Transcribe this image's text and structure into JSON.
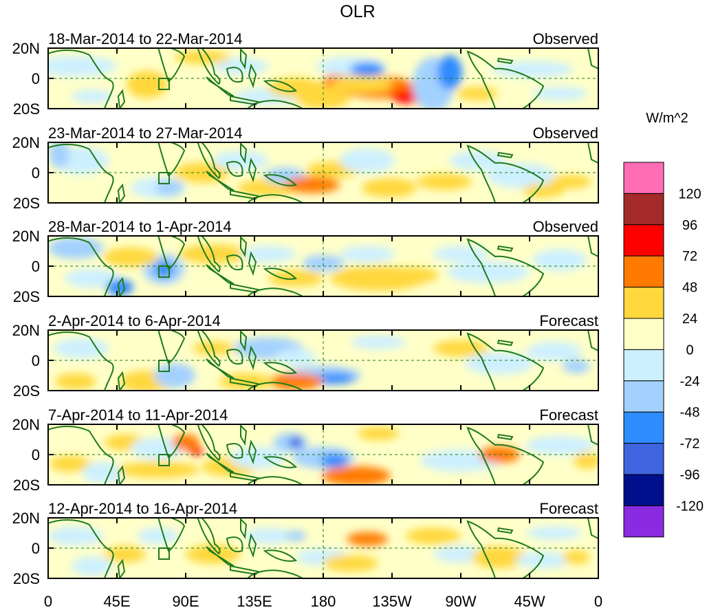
{
  "title": "OLR",
  "units_label": "W/m^2",
  "y_tick_labels": [
    "20N",
    "0",
    "20S"
  ],
  "x_tick_labels": [
    "0",
    "45E",
    "90E",
    "135E",
    "180",
    "135W",
    "90W",
    "45W",
    "0"
  ],
  "panels": [
    {
      "date_range": "18-Mar-2014 to 22-Mar-2014",
      "type": "Observed"
    },
    {
      "date_range": "23-Mar-2014 to 27-Mar-2014",
      "type": "Observed"
    },
    {
      "date_range": "28-Mar-2014 to 1-Apr-2014",
      "type": "Observed"
    },
    {
      "date_range": "2-Apr-2014 to 6-Apr-2014",
      "type": "Forecast"
    },
    {
      "date_range": "7-Apr-2014 to 11-Apr-2014",
      "type": "Forecast"
    },
    {
      "date_range": "12-Apr-2014 to 16-Apr-2014",
      "type": "Forecast"
    }
  ],
  "colorbar": {
    "labels": [
      "120",
      "96",
      "72",
      "48",
      "24",
      "0",
      "-24",
      "-48",
      "-72",
      "-96",
      "-120"
    ],
    "colors": [
      "#ff6eb4",
      "#a52a2a",
      "#ff0000",
      "#ff7a00",
      "#ffd83d",
      "#ffffc8",
      "#cdf0ff",
      "#a3d1ff",
      "#2f8cff",
      "#3e64e0",
      "#000f8c",
      "#8a2be2"
    ]
  },
  "colors": {
    "land_outline": "#1e7a1e",
    "guide_line": "#1e7a1e"
  }
}
